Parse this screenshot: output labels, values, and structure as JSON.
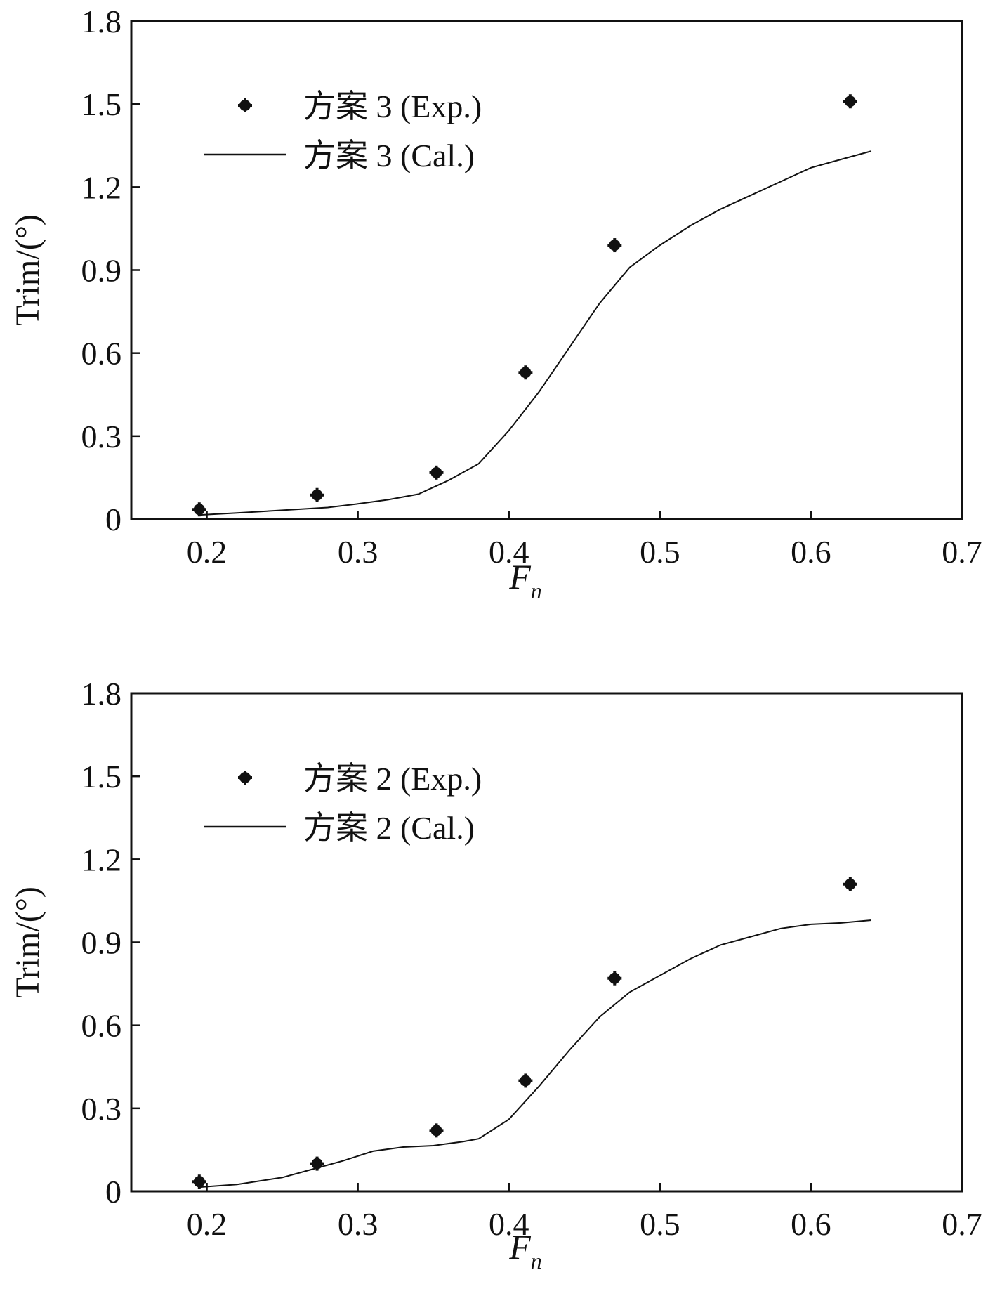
{
  "chart_data": [
    {
      "type": "line",
      "xlabel_main": "F",
      "xlabel_sub": "n",
      "ylabel": "Trim/(°)",
      "xlim": [
        0.15,
        0.7
      ],
      "ylim": [
        0,
        1.8
      ],
      "xticks": [
        "0.2",
        "0.3",
        "0.4",
        "0.5",
        "0.6",
        "0.7"
      ],
      "yticks": [
        "0",
        "0.3",
        "0.6",
        "0.9",
        "1.2",
        "1.5",
        "1.8"
      ],
      "legend_position": "top-left",
      "series": [
        {
          "name": "方案 3 (Exp.)",
          "style": "markers",
          "x": [
            0.195,
            0.273,
            0.352,
            0.411,
            0.47,
            0.626
          ],
          "y": [
            0.035,
            0.087,
            0.168,
            0.53,
            0.99,
            1.51
          ]
        },
        {
          "name": "方案 3 (Cal.)",
          "style": "line",
          "x": [
            0.195,
            0.22,
            0.25,
            0.28,
            0.3,
            0.32,
            0.34,
            0.36,
            0.38,
            0.4,
            0.42,
            0.44,
            0.46,
            0.48,
            0.5,
            0.52,
            0.54,
            0.56,
            0.58,
            0.6,
            0.62,
            0.64
          ],
          "y": [
            0.015,
            0.022,
            0.032,
            0.042,
            0.055,
            0.07,
            0.09,
            0.14,
            0.2,
            0.32,
            0.46,
            0.62,
            0.78,
            0.91,
            0.99,
            1.06,
            1.12,
            1.17,
            1.22,
            1.27,
            1.3,
            1.33
          ]
        }
      ]
    },
    {
      "type": "line",
      "xlabel_main": "F",
      "xlabel_sub": "n",
      "ylabel": "Trim/(°)",
      "xlim": [
        0.15,
        0.7
      ],
      "ylim": [
        0,
        1.8
      ],
      "xticks": [
        "0.2",
        "0.3",
        "0.4",
        "0.5",
        "0.6",
        "0.7"
      ],
      "yticks": [
        "0",
        "0.3",
        "0.6",
        "0.9",
        "1.2",
        "1.5",
        "1.8"
      ],
      "legend_position": "top-left",
      "series": [
        {
          "name": "方案 2 (Exp.)",
          "style": "markers",
          "x": [
            0.195,
            0.273,
            0.352,
            0.411,
            0.47,
            0.626
          ],
          "y": [
            0.035,
            0.1,
            0.22,
            0.4,
            0.77,
            1.11
          ]
        },
        {
          "name": "方案 2 (Cal.)",
          "style": "line",
          "x": [
            0.195,
            0.22,
            0.25,
            0.27,
            0.29,
            0.31,
            0.33,
            0.35,
            0.37,
            0.38,
            0.4,
            0.42,
            0.44,
            0.46,
            0.48,
            0.5,
            0.52,
            0.54,
            0.56,
            0.58,
            0.6,
            0.62,
            0.64
          ],
          "y": [
            0.015,
            0.025,
            0.05,
            0.08,
            0.11,
            0.145,
            0.16,
            0.165,
            0.18,
            0.19,
            0.26,
            0.38,
            0.51,
            0.63,
            0.72,
            0.78,
            0.84,
            0.89,
            0.92,
            0.95,
            0.965,
            0.97,
            0.98
          ]
        }
      ]
    }
  ]
}
